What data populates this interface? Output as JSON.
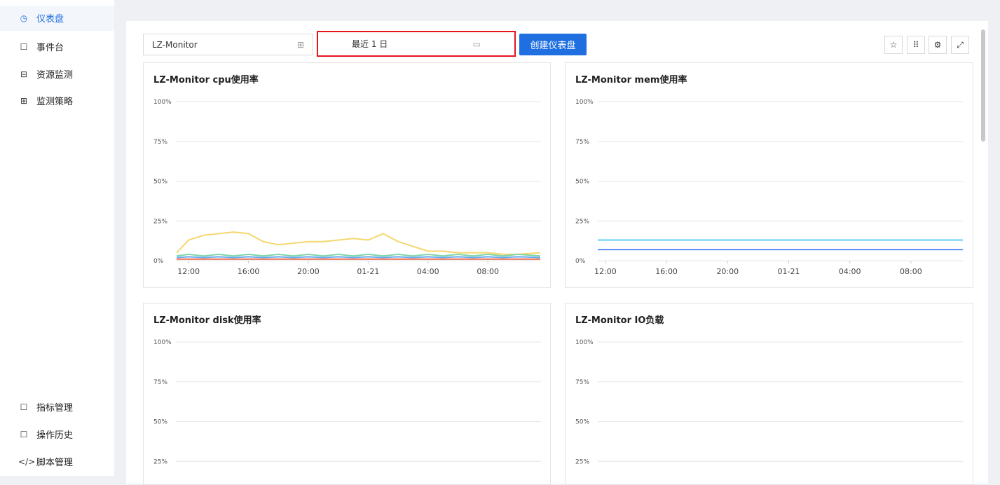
{
  "sidebar": {
    "top_items": [
      "仪表盘",
      "事件台",
      "资源监测",
      "监测策略"
    ],
    "bottom_items": [
      "指标管理",
      "操作历史",
      "脚本管理"
    ]
  },
  "toolbar": {
    "dashboard_select": "LZ-Monitor",
    "time_range": "最近 1 日",
    "create_button": "创建仪表盘"
  },
  "dashboard": {
    "panels": [
      {
        "type": "line",
        "title": "LZ-Monitor cpu使用率",
        "xlim": [
          -0.85,
          23.55
        ],
        "xticks": [
          {
            "value": 0,
            "label": "12:00"
          },
          {
            "value": 4,
            "label": "16:00"
          },
          {
            "value": 8,
            "label": "20:00"
          },
          {
            "value": 12,
            "label": "01-21"
          },
          {
            "value": 16,
            "label": "04:00"
          },
          {
            "value": 20,
            "label": "08:00"
          }
        ],
        "ylim": [
          0,
          100
        ],
        "yticks": [
          {
            "value": 0,
            "label": "0%"
          },
          {
            "value": 25,
            "label": "25%"
          },
          {
            "value": 50,
            "label": "50%"
          },
          {
            "value": 75,
            "label": "75%"
          },
          {
            "value": 100,
            "label": "100%"
          }
        ],
        "x": [
          -0.8,
          0,
          1,
          2,
          3,
          4,
          5,
          6,
          7,
          8,
          9,
          10,
          11,
          12,
          13,
          14,
          15,
          16,
          17,
          18,
          19,
          20,
          21,
          22,
          23.5
        ],
        "series": [
          {
            "color": "#f5d76e",
            "values": [
              5,
              13,
              16,
              17,
              18,
              17,
              12,
              10,
              11,
              12,
              12,
              13,
              14,
              13,
              17,
              12,
              9,
              6,
              6,
              5,
              5,
              5,
              4,
              4,
              5
            ]
          },
          {
            "color": "#7ed6a8",
            "values": [
              3,
              4,
              3,
              4,
              3,
              4,
              3,
              4,
              3,
              4,
              3,
              4,
              3,
              4,
              3,
              4,
              3,
              4,
              3,
              4,
              3,
              4,
              3,
              4,
              3
            ]
          },
          {
            "color": "#6aa9f0",
            "values": [
              2,
              2.5,
              2,
              2.5,
              2,
              2.5,
              2,
              2.5,
              2,
              2.5,
              2,
              2.5,
              2,
              2.5,
              2,
              2.5,
              2,
              2.5,
              2,
              2.5,
              2,
              2.5,
              2,
              2.5,
              2
            ]
          },
          {
            "color": "#e8684a",
            "values": [
              1,
              1,
              1,
              1,
              1,
              1,
              1,
              1,
              1,
              1,
              1,
              1,
              1,
              1,
              1,
              1,
              1,
              1,
              1,
              1,
              1,
              1,
              1,
              1,
              1
            ]
          }
        ]
      },
      {
        "type": "line",
        "title": "LZ-Monitor mem使用率",
        "xlim": [
          -0.5,
          23.4
        ],
        "xticks": [
          {
            "value": 0,
            "label": "12:00"
          },
          {
            "value": 4,
            "label": "16:00"
          },
          {
            "value": 8,
            "label": "20:00"
          },
          {
            "value": 12,
            "label": "01-21"
          },
          {
            "value": 16,
            "label": "04:00"
          },
          {
            "value": 20,
            "label": "08:00"
          }
        ],
        "ylim": [
          0,
          100
        ],
        "yticks": [
          {
            "value": 0,
            "label": "0%"
          },
          {
            "value": 25,
            "label": "25%"
          },
          {
            "value": 50,
            "label": "50%"
          },
          {
            "value": 75,
            "label": "75%"
          },
          {
            "value": 100,
            "label": "100%"
          }
        ],
        "x": [
          -0.5,
          23.4
        ],
        "series": [
          {
            "color": "#5ccbf5",
            "values": [
              13,
              13
            ]
          },
          {
            "color": "#5b8ff9",
            "values": [
              7,
              7
            ]
          }
        ]
      },
      {
        "type": "line",
        "title": "LZ-Monitor disk使用率",
        "ylim": [
          0,
          100
        ],
        "yticks": [
          {
            "value": 25,
            "label": "25%"
          },
          {
            "value": 50,
            "label": "50%"
          },
          {
            "value": 75,
            "label": "75%"
          },
          {
            "value": 100,
            "label": "100%"
          }
        ],
        "series": []
      },
      {
        "type": "line",
        "title": "LZ-Monitor IO负载",
        "ylim": [
          0,
          100
        ],
        "yticks": [
          {
            "value": 25,
            "label": "25%"
          },
          {
            "value": 50,
            "label": "50%"
          },
          {
            "value": 75,
            "label": "75%"
          },
          {
            "value": 100,
            "label": "100%"
          }
        ],
        "series": []
      }
    ]
  }
}
